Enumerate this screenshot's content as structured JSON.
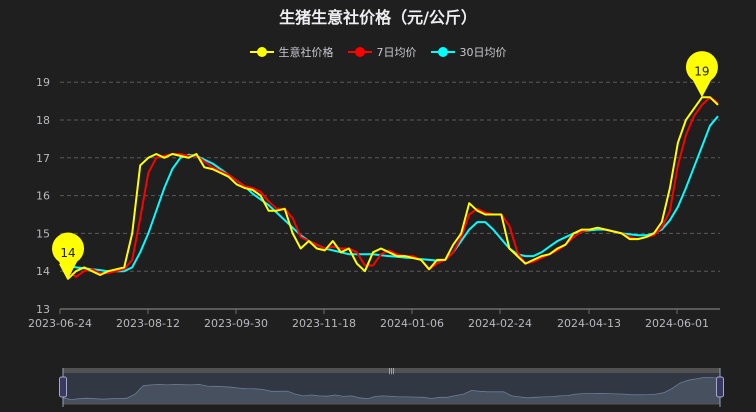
{
  "title": "生猪生意社价格（元/公斤）",
  "legend": [
    {
      "label": "生意社价格",
      "color": "#ffff00"
    },
    {
      "label": "7日均价",
      "color": "#ff0000"
    },
    {
      "label": "30日均价",
      "color": "#00ffff"
    }
  ],
  "markers": {
    "min": {
      "label": "14",
      "series": "生意社价格"
    },
    "max": {
      "label": "19",
      "series": "生意社价格"
    }
  },
  "chart_data": {
    "type": "line",
    "title": "生猪生意社价格（元/公斤）",
    "xlabel": "",
    "ylabel": "",
    "ylim": [
      13,
      19
    ],
    "yticks": [
      13,
      14,
      15,
      16,
      17,
      18,
      19
    ],
    "xtick_labels": [
      "2023-06-24",
      "2023-08-12",
      "2023-09-30",
      "2023-11-18",
      "2024-01-06",
      "2024-02-24",
      "2024-04-13",
      "2024-06-01"
    ],
    "x_start": "2023-06-24",
    "x_step_days": 4,
    "grid": true,
    "legend_position": "top",
    "series": [
      {
        "name": "生意社价格",
        "color": "#ffff00",
        "values": [
          14.2,
          13.8,
          14.0,
          14.1,
          14.0,
          13.9,
          14.0,
          14.05,
          14.1,
          15.0,
          16.8,
          17.0,
          17.1,
          17.0,
          17.1,
          17.05,
          17.0,
          17.1,
          16.75,
          16.7,
          16.6,
          16.5,
          16.3,
          16.2,
          16.15,
          16.0,
          15.6,
          15.6,
          15.65,
          15.0,
          14.6,
          14.8,
          14.6,
          14.55,
          14.8,
          14.5,
          14.6,
          14.2,
          14.0,
          14.5,
          14.6,
          14.5,
          14.4,
          14.4,
          14.35,
          14.3,
          14.05,
          14.3,
          14.3,
          14.7,
          15.0,
          15.8,
          15.6,
          15.5,
          15.5,
          15.5,
          14.6,
          14.4,
          14.2,
          14.3,
          14.4,
          14.45,
          14.6,
          14.7,
          15.0,
          15.1,
          15.1,
          15.15,
          15.1,
          15.05,
          15.0,
          14.85,
          14.85,
          14.9,
          15.0,
          15.3,
          16.2,
          17.4,
          18.0,
          18.3,
          18.6,
          18.6,
          18.4
        ]
      },
      {
        "name": "7日均价",
        "color": "#ff0000",
        "values": [
          14.2,
          14.0,
          13.85,
          14.0,
          14.05,
          13.95,
          13.95,
          14.0,
          14.05,
          14.3,
          15.4,
          16.6,
          17.0,
          17.05,
          17.1,
          17.1,
          17.05,
          17.05,
          16.9,
          16.75,
          16.65,
          16.55,
          16.4,
          16.25,
          16.2,
          16.1,
          15.85,
          15.65,
          15.65,
          15.4,
          14.9,
          14.8,
          14.7,
          14.6,
          14.65,
          14.6,
          14.6,
          14.5,
          14.15,
          14.15,
          14.45,
          14.55,
          14.45,
          14.4,
          14.4,
          14.3,
          14.05,
          14.2,
          14.3,
          14.5,
          14.9,
          15.5,
          15.65,
          15.55,
          15.5,
          15.5,
          15.2,
          14.5,
          14.2,
          14.25,
          14.35,
          14.45,
          14.55,
          14.7,
          14.9,
          15.05,
          15.1,
          15.15,
          15.1,
          15.05,
          15.0,
          14.9,
          14.85,
          14.9,
          14.95,
          15.15,
          15.6,
          16.8,
          17.6,
          18.1,
          18.4,
          18.6,
          18.45
        ]
      },
      {
        "name": "30日均价",
        "color": "#00ffff",
        "values": [
          14.3,
          14.15,
          14.1,
          14.08,
          14.05,
          14.03,
          14.0,
          14.0,
          14.0,
          14.1,
          14.5,
          15.0,
          15.6,
          16.2,
          16.7,
          17.0,
          17.08,
          17.05,
          16.95,
          16.85,
          16.7,
          16.55,
          16.4,
          16.25,
          16.05,
          15.9,
          15.75,
          15.55,
          15.35,
          15.15,
          14.95,
          14.8,
          14.7,
          14.6,
          14.55,
          14.5,
          14.45,
          14.45,
          14.45,
          14.45,
          14.42,
          14.4,
          14.38,
          14.36,
          14.35,
          14.32,
          14.3,
          14.28,
          14.3,
          14.5,
          14.8,
          15.1,
          15.3,
          15.3,
          15.1,
          14.85,
          14.6,
          14.45,
          14.4,
          14.4,
          14.5,
          14.65,
          14.8,
          14.9,
          15.0,
          15.05,
          15.08,
          15.1,
          15.1,
          15.05,
          15.0,
          14.98,
          14.95,
          14.95,
          15.0,
          15.1,
          15.35,
          15.7,
          16.2,
          16.75,
          17.3,
          17.85,
          18.1
        ]
      }
    ]
  },
  "datazoom": {
    "start_label": "",
    "end_label": "",
    "handle_glyph": "|||"
  }
}
